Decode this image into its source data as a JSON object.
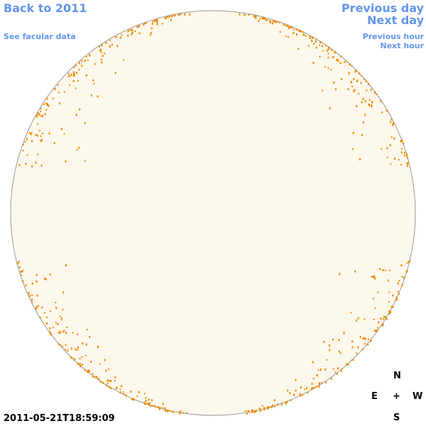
{
  "navigation": {
    "back": "Back to 2011",
    "facular_data": "See facular data",
    "previous_day": "Previous day",
    "next_day": "Next day",
    "previous_hour": "Previous hour",
    "next_hour": "Next hour"
  },
  "timestamp": "2011-05-21T18:59:09",
  "compass": {
    "north": "N",
    "east": "E",
    "center": "+",
    "west": "W",
    "south": "S"
  }
}
